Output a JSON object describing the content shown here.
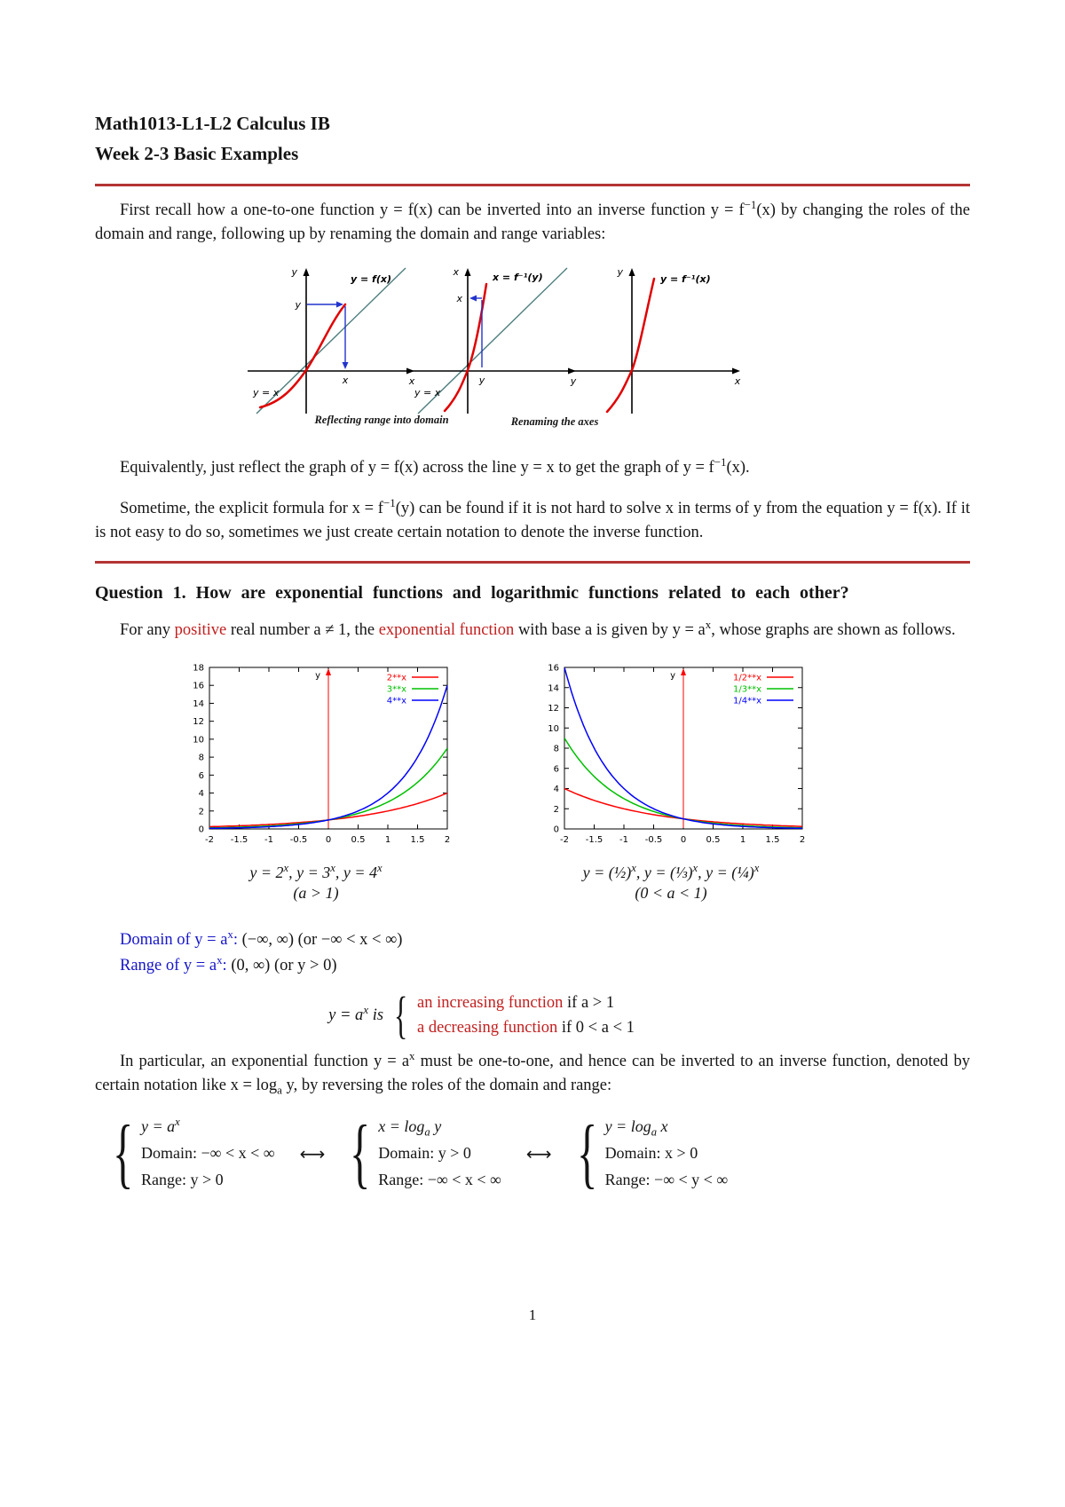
{
  "doc": {
    "title": "Math1013-L1-L2 Calculus IB",
    "subtitle": "Week 2-3 Basic Examples",
    "page_number": "1"
  },
  "intro_para": "First recall how a one-to-one function y = f(x) can be inverted into an inverse function y = f^{−1}(x) by changing the roles of the domain and range, following up by renaming the domain and range variables:",
  "figures": {
    "fig1": {
      "top_label": "y",
      "right_label": "x",
      "curve_label": "y = f(x)",
      "tick_left": "y",
      "tick_bottom": "x",
      "diagonal_label": "y = x"
    },
    "fig2": {
      "top_label": "x",
      "right_label": "y",
      "curve_label": "x = f⁻¹(y)",
      "tick_left": "x",
      "tick_bottom": "y",
      "diagonal_label": "y = x"
    },
    "fig3": {
      "top_label": "y",
      "right_label": "x",
      "curve_label": "y = f⁻¹(x)"
    },
    "caption_left": "Reflecting range into domain",
    "caption_right": "Renaming the axes"
  },
  "reflect": {
    "para1": "Equivalently, just reflect the graph of y = f(x) across the line y = x to get the graph of y = f^{−1}(x).",
    "para2": "Sometime, the explicit formula for x = f^{−1}(y) can be found if it is not hard to solve x in terms of y from the equation y = f(x). If it is not easy to do so, sometimes we just create certain notation to denote the inverse function."
  },
  "question": {
    "heading": "Question 1. How are exponential functions and logarithmic functions related to each other?",
    "para": [
      {
        "text": "For any "
      },
      {
        "text": "positive",
        "color": "#c21f1f"
      },
      {
        "text": " real number a ≠ 1, the "
      },
      {
        "text": "exponential function",
        "color": "#c21f1f"
      },
      {
        "text": " with base a is given by y = a^{x}, whose graphs are shown as follows."
      }
    ]
  },
  "chart_data": [
    {
      "type": "line",
      "title": "",
      "xlabel": "",
      "ylabel": "y",
      "xlim": [
        -2,
        2
      ],
      "ylim": [
        0,
        18
      ],
      "xticks": [
        "-2",
        "-1.5",
        "-1",
        "-0.5",
        "0",
        "0.5",
        "1",
        "1.5",
        "2"
      ],
      "yticks": [
        "0",
        "2",
        "4",
        "6",
        "8",
        "10",
        "12",
        "14",
        "16",
        "18"
      ],
      "grid": false,
      "legend_position": "top-right",
      "series": [
        {
          "name": "2**x",
          "expression": "y = 2^x",
          "base": 2,
          "color": "#ff0000",
          "x": [
            -2,
            -1,
            0,
            1,
            2
          ],
          "y": [
            0.25,
            0.5,
            1,
            2,
            4
          ]
        },
        {
          "name": "3**x",
          "expression": "y = 3^x",
          "base": 3,
          "color": "#00c000",
          "x": [
            -2,
            -1,
            0,
            1,
            2
          ],
          "y": [
            0.111,
            0.333,
            1,
            3,
            9
          ]
        },
        {
          "name": "4**x",
          "expression": "y = 4^x",
          "base": 4,
          "color": "#0000ff",
          "x": [
            -2,
            -1,
            0,
            1,
            2
          ],
          "y": [
            0.0625,
            0.25,
            1,
            4,
            16
          ]
        }
      ],
      "caption": "y = 2^{x},  y = 3^{x},  y = 4^{x}",
      "subcaption": "(a > 1)"
    },
    {
      "type": "line",
      "title": "",
      "xlabel": "",
      "ylabel": "y",
      "xlim": [
        -2,
        2
      ],
      "ylim": [
        0,
        16
      ],
      "xticks": [
        "-2",
        "-1.5",
        "-1",
        "-0.5",
        "0",
        "0.5",
        "1",
        "1.5",
        "2"
      ],
      "yticks": [
        "0",
        "2",
        "4",
        "6",
        "8",
        "10",
        "12",
        "14",
        "16"
      ],
      "grid": false,
      "legend_position": "top-right",
      "series": [
        {
          "name": "1/2**x",
          "expression": "y = (1/2)^x",
          "base": 0.5,
          "color": "#ff0000",
          "x": [
            -2,
            -1,
            0,
            1,
            2
          ],
          "y": [
            4,
            2,
            1,
            0.5,
            0.25
          ]
        },
        {
          "name": "1/3**x",
          "expression": "y = (1/3)^x",
          "base": 0.33333,
          "color": "#00c000",
          "x": [
            -2,
            -1,
            0,
            1,
            2
          ],
          "y": [
            9,
            3,
            1,
            0.333,
            0.111
          ]
        },
        {
          "name": "1/4**x",
          "expression": "y = (1/4)^x",
          "base": 0.25,
          "color": "#0000ff",
          "x": [
            -2,
            -1,
            0,
            1,
            2
          ],
          "y": [
            16,
            4,
            1,
            0.25,
            0.0625
          ]
        }
      ],
      "caption": "y = (½)^{x},  y = (⅓)^{x},  y = (¼)^{x}",
      "subcaption": "(0 < a < 1)"
    }
  ],
  "domain_range": {
    "domain_label": "Domain of y = a^{x}:",
    "domain_value": " (−∞, ∞)   (or −∞ < x < ∞)",
    "range_label": "Range of y = a^{x}:",
    "range_value": " (0, ∞)   (or y > 0)"
  },
  "cases": {
    "lead": "y = a^{x} is",
    "brace": "{",
    "line1": [
      {
        "text": "an increasing function",
        "color": "#c21f1f"
      },
      {
        "text": " if a > 1"
      }
    ],
    "line2": [
      {
        "text": "a decreasing function",
        "color": "#c21f1f"
      },
      {
        "text": " if 0 < a < 1"
      }
    ]
  },
  "mapping": {
    "intro": "In particular, an exponential function y = a^{x} must be one-to-one, and hence can be inverted to an inverse function, denoted by certain notation like x = log_{a} y, by reversing the roles of the domain and range:",
    "arrow": "⟷",
    "groups": [
      {
        "formula": "y = a^{x}",
        "domain": "Domain: −∞ < x < ∞",
        "range": "Range: y > 0"
      },
      {
        "formula": "x = log_{a} y",
        "domain": "Domain: y > 0",
        "range": "Range: −∞ < x < ∞"
      },
      {
        "formula": "y = log_{a} x",
        "domain": "Domain: x > 0",
        "range": "Range: −∞ < y < ∞"
      }
    ]
  }
}
